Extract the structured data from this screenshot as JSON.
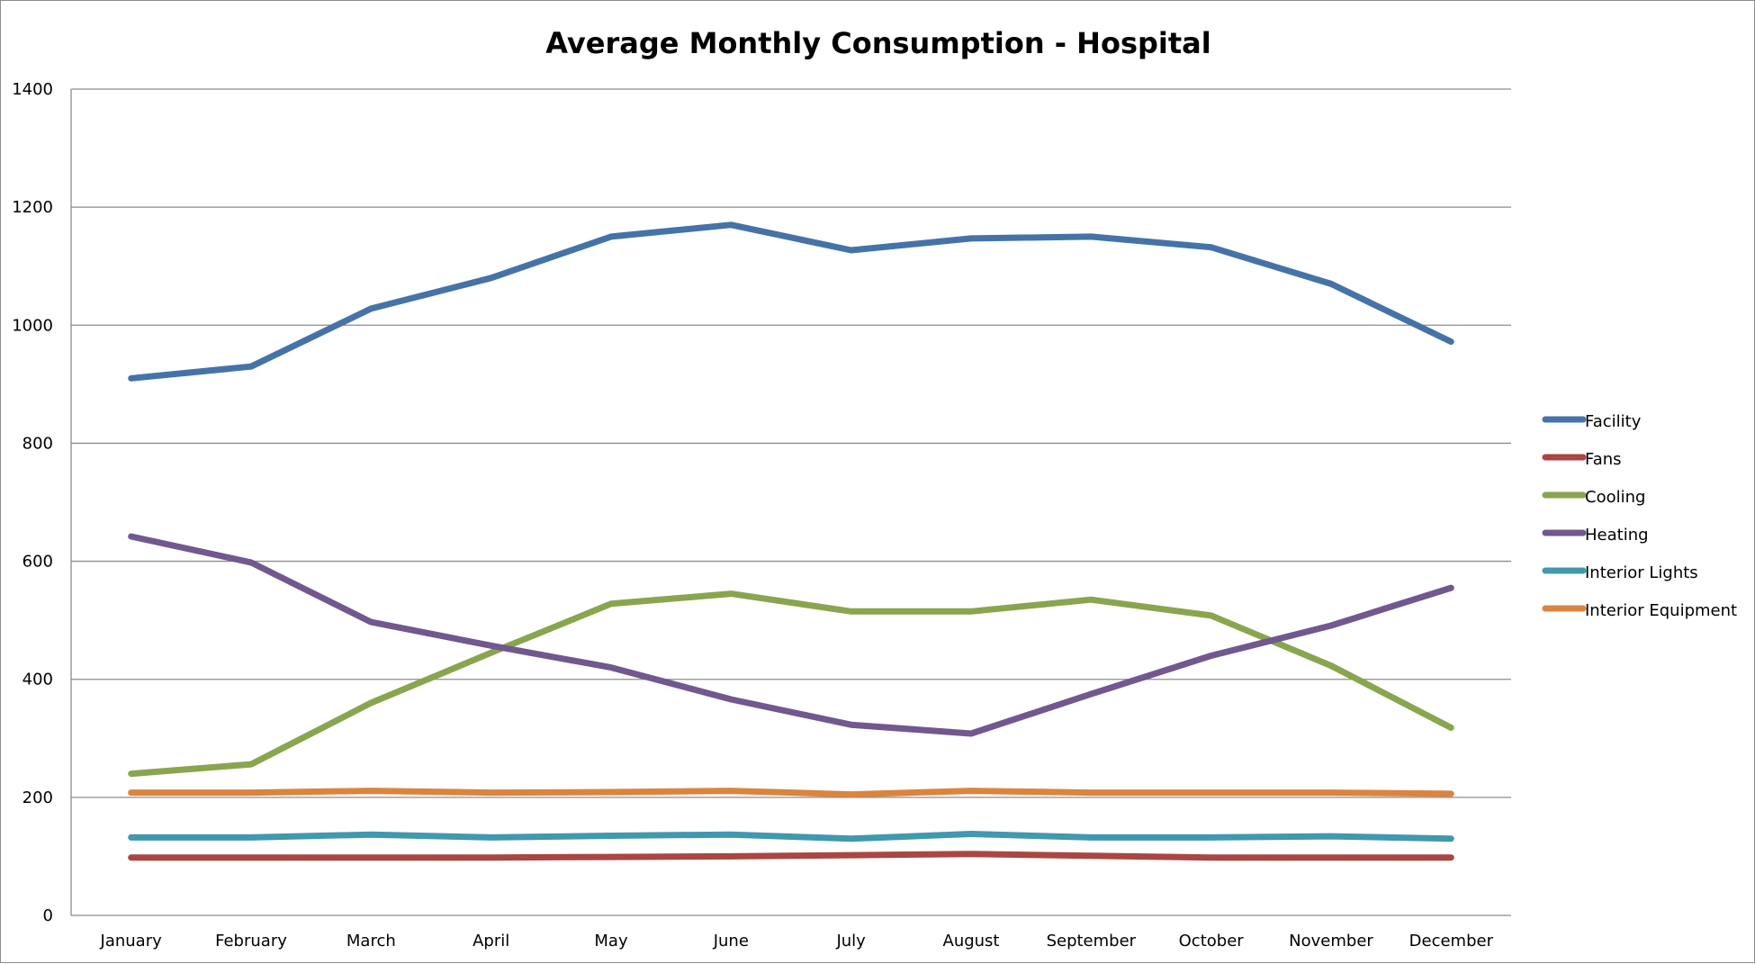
{
  "chart_data": {
    "type": "line",
    "title": "Average Monthly Consumption - Hospital",
    "xlabel": "",
    "ylabel": "",
    "categories": [
      "January",
      "February",
      "March",
      "April",
      "May",
      "June",
      "July",
      "August",
      "September",
      "October",
      "November",
      "December"
    ],
    "ylim": [
      0,
      1400
    ],
    "yticks": [
      0,
      200,
      400,
      600,
      800,
      1000,
      1200,
      1400
    ],
    "grid": true,
    "legend_position": "right",
    "series": [
      {
        "name": "Facility",
        "color": "#4573a7",
        "values": [
          910,
          930,
          1028,
          1080,
          1150,
          1170,
          1127,
          1147,
          1150,
          1132,
          1070,
          972
        ]
      },
      {
        "name": "Fans",
        "color": "#aa4643",
        "values": [
          98,
          98,
          98,
          98,
          99,
          100,
          102,
          104,
          101,
          98,
          98,
          98
        ]
      },
      {
        "name": "Cooling",
        "color": "#89a54e",
        "values": [
          240,
          256,
          360,
          445,
          528,
          545,
          515,
          515,
          535,
          508,
          423,
          318
        ]
      },
      {
        "name": "Heating",
        "color": "#71588f",
        "values": [
          642,
          598,
          497,
          457,
          420,
          366,
          323,
          308,
          375,
          440,
          491,
          555
        ]
      },
      {
        "name": "Interior Lights",
        "color": "#4198af",
        "values": [
          132,
          132,
          137,
          132,
          135,
          137,
          130,
          138,
          132,
          132,
          134,
          130
        ]
      },
      {
        "name": "Interior Equipment",
        "color": "#db843d",
        "values": [
          208,
          208,
          211,
          208,
          209,
          211,
          205,
          211,
          208,
          208,
          208,
          206
        ]
      }
    ]
  }
}
